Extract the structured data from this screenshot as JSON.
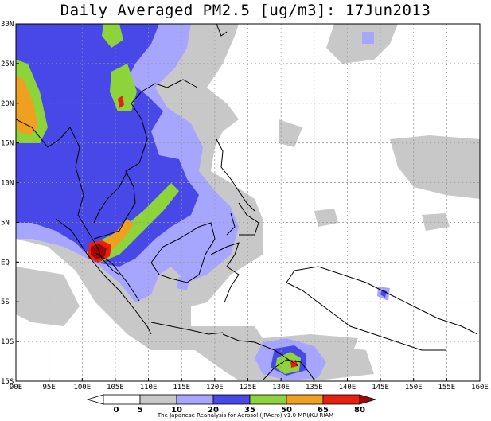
{
  "title": "Daily Averaged PM2.5 [ug/m3]: 17Jun2013",
  "credit": "The Japanese Reanalysis for Aerosol (JRAero) v1.0 MRI/KU RIAM",
  "map": {
    "lon_range": [
      90,
      160
    ],
    "lat_range": [
      -15,
      30
    ],
    "lon_ticks": [
      {
        "value": 90,
        "label": "90E"
      },
      {
        "value": 95,
        "label": "95E"
      },
      {
        "value": 100,
        "label": "100E"
      },
      {
        "value": 105,
        "label": "105E"
      },
      {
        "value": 110,
        "label": "110E"
      },
      {
        "value": 115,
        "label": "115E"
      },
      {
        "value": 120,
        "label": "120E"
      },
      {
        "value": 125,
        "label": "125E"
      },
      {
        "value": 130,
        "label": "130E"
      },
      {
        "value": 135,
        "label": "135E"
      },
      {
        "value": 140,
        "label": "140E"
      },
      {
        "value": 145,
        "label": "145E"
      },
      {
        "value": 150,
        "label": "150E"
      },
      {
        "value": 155,
        "label": "155E"
      },
      {
        "value": 160,
        "label": "160E"
      }
    ],
    "lat_ticks": [
      {
        "value": 30,
        "label": "30N"
      },
      {
        "value": 25,
        "label": "25N"
      },
      {
        "value": 20,
        "label": "20N"
      },
      {
        "value": 15,
        "label": "15N"
      },
      {
        "value": 10,
        "label": "10N"
      },
      {
        "value": 5,
        "label": "5N"
      },
      {
        "value": 0,
        "label": "EQ"
      },
      {
        "value": -5,
        "label": "5S"
      },
      {
        "value": -10,
        "label": "10S"
      },
      {
        "value": -15,
        "label": "15S"
      }
    ],
    "grid": true,
    "levels": [
      {
        "label": "0",
        "color": "#ffffff"
      },
      {
        "label": "5",
        "color": "#ffffff"
      },
      {
        "label": "10",
        "color": "#c8c8c8"
      },
      {
        "label": "20",
        "color": "#a6a6ff"
      },
      {
        "label": "35",
        "color": "#4848e8"
      },
      {
        "label": "50",
        "color": "#8cd43a"
      },
      {
        "label": "65",
        "color": "#f0a020"
      },
      {
        "label": "80",
        "color": "#e82010"
      },
      {
        "label": "",
        "color": "#a00808"
      }
    ],
    "colorbar_labels": [
      "0",
      "5",
      "10",
      "20",
      "35",
      "50",
      "65",
      "80"
    ]
  }
}
